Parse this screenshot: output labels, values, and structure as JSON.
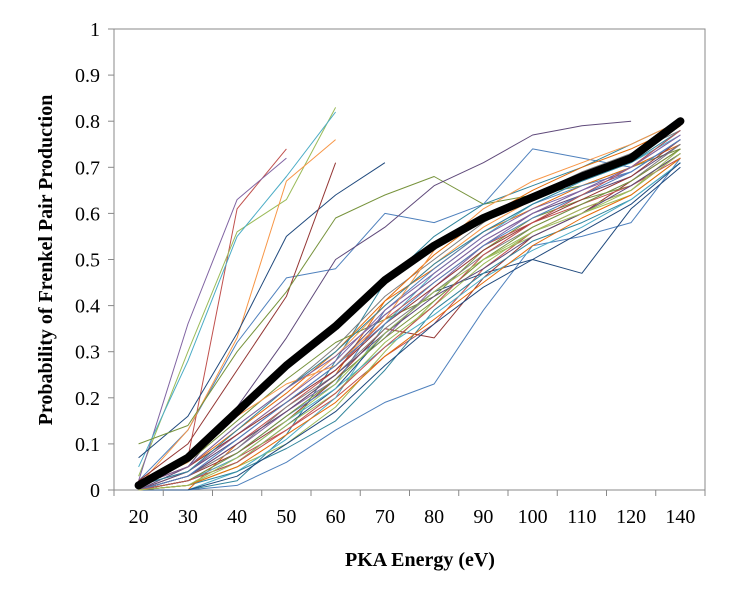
{
  "chart_data": {
    "type": "line",
    "title": "",
    "xlabel": "PKA Energy (eV)",
    "ylabel": "Probability of Frenkel Pair Production",
    "x": [
      20,
      30,
      40,
      50,
      60,
      70,
      80,
      90,
      100,
      110,
      120,
      140
    ],
    "x_tick_labels": [
      "20",
      "30",
      "40",
      "50",
      "60",
      "70",
      "80",
      "90",
      "100",
      "110",
      "120",
      "140"
    ],
    "ylim": [
      0,
      1
    ],
    "y_ticks": [
      0,
      0.1,
      0.2,
      0.3,
      0.4,
      0.5,
      0.6,
      0.7,
      0.8,
      0.9,
      1
    ],
    "y_tick_labels": [
      "0",
      "0.1",
      "0.2",
      "0.3",
      "0.4",
      "0.5",
      "0.6",
      "0.7",
      "0.8",
      "0.9",
      "1"
    ],
    "grid": false,
    "legend": "none",
    "average_line_color": "#000000",
    "average_series": {
      "values": [
        0.01,
        0.07,
        0.17,
        0.27,
        0.355,
        0.455,
        0.53,
        0.59,
        0.635,
        0.68,
        0.72,
        0.8
      ]
    },
    "series": [
      {
        "color": "#4f81bd",
        "values": [
          0.02,
          0.13,
          0.32,
          0.46,
          0.48,
          0.6,
          0.58,
          0.62,
          0.74,
          0.72,
          0.7,
          0.78
        ]
      },
      {
        "color": "#c0504d",
        "values": [
          0.01,
          0.07,
          0.61,
          0.74,
          null,
          null,
          null,
          null,
          null,
          null,
          null,
          null
        ]
      },
      {
        "color": "#9bbb59",
        "values": [
          0.03,
          0.3,
          0.56,
          0.63,
          0.83,
          null,
          null,
          null,
          null,
          null,
          null,
          null
        ]
      },
      {
        "color": "#8064a2",
        "values": [
          0.02,
          0.36,
          0.63,
          0.72,
          null,
          null,
          null,
          null,
          null,
          null,
          null,
          null
        ]
      },
      {
        "color": "#4bacc6",
        "values": [
          0.05,
          0.28,
          0.55,
          0.68,
          0.82,
          null,
          null,
          null,
          null,
          null,
          null,
          null
        ]
      },
      {
        "color": "#f79646",
        "values": [
          0.01,
          0.13,
          0.33,
          0.67,
          0.76,
          null,
          null,
          null,
          null,
          null,
          null,
          null
        ]
      },
      {
        "color": "#1f497d",
        "values": [
          0.07,
          0.16,
          0.34,
          0.55,
          0.64,
          0.71,
          null,
          null,
          null,
          null,
          null,
          null
        ]
      },
      {
        "color": "#943634",
        "values": [
          0.02,
          0.1,
          0.26,
          0.42,
          0.71,
          null,
          null,
          null,
          null,
          null,
          null,
          null
        ]
      },
      {
        "color": "#77933c",
        "values": [
          0.1,
          0.14,
          0.3,
          0.43,
          0.59,
          0.64,
          0.68,
          0.62,
          0.64,
          0.66,
          0.7,
          0.74
        ]
      },
      {
        "color": "#5f497a",
        "values": [
          0.0,
          0.05,
          0.18,
          0.33,
          0.5,
          0.57,
          0.66,
          0.71,
          0.77,
          0.79,
          0.8,
          null
        ]
      },
      {
        "color": "#31859c",
        "values": [
          0.0,
          0.0,
          0.02,
          0.12,
          0.28,
          0.45,
          0.55,
          0.62,
          0.66,
          0.7,
          0.75,
          0.8
        ]
      },
      {
        "color": "#e46c0a",
        "values": [
          0.0,
          0.0,
          0.1,
          0.17,
          0.25,
          0.41,
          0.48,
          0.56,
          0.61,
          0.66,
          0.7,
          0.75
        ]
      },
      {
        "color": "#4f81bd",
        "values": [
          0.0,
          0.0,
          0.01,
          0.06,
          0.13,
          0.19,
          0.23,
          0.39,
          0.53,
          0.55,
          0.58,
          0.72
        ]
      },
      {
        "color": "#c0504d",
        "values": [
          0.0,
          0.02,
          0.07,
          0.13,
          0.2,
          0.29,
          0.36,
          0.48,
          0.56,
          0.61,
          0.65,
          0.73
        ]
      },
      {
        "color": "#9bbb59",
        "values": [
          0.0,
          0.01,
          0.05,
          0.1,
          0.18,
          0.3,
          0.41,
          0.5,
          0.55,
          0.6,
          0.64,
          0.72
        ]
      },
      {
        "color": "#8064a2",
        "values": [
          0.0,
          0.03,
          0.09,
          0.17,
          0.24,
          0.33,
          0.44,
          0.53,
          0.6,
          0.65,
          0.69,
          0.76
        ]
      },
      {
        "color": "#4bacc6",
        "values": [
          0.0,
          0.0,
          0.04,
          0.11,
          0.2,
          0.36,
          0.47,
          0.55,
          0.62,
          0.67,
          0.71,
          0.77
        ]
      },
      {
        "color": "#f79646",
        "values": [
          0.0,
          0.04,
          0.12,
          0.2,
          0.29,
          0.4,
          0.49,
          0.57,
          0.63,
          0.68,
          0.72,
          0.79
        ]
      },
      {
        "color": "#7f7f7f",
        "values": [
          0.01,
          0.05,
          0.14,
          0.22,
          0.31,
          0.42,
          0.5,
          0.58,
          0.64,
          0.69,
          0.73,
          0.78
        ]
      },
      {
        "color": "#1f497d",
        "values": [
          0.0,
          0.02,
          0.06,
          0.14,
          0.22,
          0.34,
          0.43,
          0.47,
          0.5,
          0.47,
          0.61,
          0.7
        ]
      },
      {
        "color": "#943634",
        "values": [
          0.0,
          0.03,
          0.08,
          0.15,
          0.24,
          0.35,
          0.33,
          0.46,
          0.55,
          0.6,
          0.67,
          0.74
        ]
      },
      {
        "color": "#77933c",
        "values": [
          0.01,
          0.06,
          0.15,
          0.24,
          0.32,
          0.37,
          0.42,
          0.52,
          0.59,
          0.63,
          0.66,
          0.73
        ]
      },
      {
        "color": "#5f497a",
        "values": [
          0.0,
          0.04,
          0.11,
          0.19,
          0.27,
          0.38,
          0.46,
          0.54,
          0.6,
          0.64,
          0.68,
          0.75
        ]
      },
      {
        "color": "#31859c",
        "values": [
          0.0,
          0.01,
          0.04,
          0.09,
          0.15,
          0.26,
          0.39,
          0.47,
          0.54,
          0.58,
          0.63,
          0.71
        ]
      },
      {
        "color": "#e46c0a",
        "values": [
          0.01,
          0.05,
          0.13,
          0.21,
          0.3,
          0.41,
          0.51,
          0.59,
          0.65,
          0.7,
          0.74,
          0.79
        ]
      },
      {
        "color": "#4f81bd",
        "values": [
          0.0,
          0.02,
          0.08,
          0.16,
          0.23,
          0.39,
          0.48,
          0.56,
          0.62,
          0.66,
          0.69,
          0.76
        ]
      },
      {
        "color": "#c0504d",
        "values": [
          0.0,
          0.03,
          0.1,
          0.18,
          0.26,
          0.37,
          0.45,
          0.53,
          0.58,
          0.62,
          0.66,
          0.72
        ]
      },
      {
        "color": "#9bbb59",
        "values": [
          0.0,
          0.01,
          0.06,
          0.14,
          0.21,
          0.32,
          0.4,
          0.49,
          0.56,
          0.61,
          0.65,
          0.74
        ]
      },
      {
        "color": "#8064a2",
        "values": [
          0.01,
          0.04,
          0.12,
          0.2,
          0.28,
          0.39,
          0.47,
          0.55,
          0.61,
          0.65,
          0.7,
          0.77
        ]
      },
      {
        "color": "#4bacc6",
        "values": [
          0.0,
          0.02,
          0.07,
          0.15,
          0.22,
          0.31,
          0.38,
          0.46,
          0.52,
          0.57,
          0.63,
          0.71
        ]
      },
      {
        "color": "#f79646",
        "values": [
          0.01,
          0.06,
          0.16,
          0.23,
          0.27,
          0.37,
          0.52,
          0.61,
          0.67,
          0.71,
          0.75,
          0.8
        ]
      },
      {
        "color": "#7f7f7f",
        "values": [
          0.0,
          0.03,
          0.09,
          0.18,
          0.25,
          0.35,
          0.43,
          0.51,
          0.57,
          0.62,
          0.67,
          0.75
        ]
      },
      {
        "color": "#1f497d",
        "values": [
          0.0,
          0.0,
          0.03,
          0.1,
          0.17,
          0.27,
          0.36,
          0.44,
          0.5,
          0.56,
          0.62,
          0.71
        ]
      },
      {
        "color": "#943634",
        "values": [
          0.01,
          0.05,
          0.12,
          0.19,
          0.26,
          0.36,
          0.44,
          0.52,
          0.58,
          0.63,
          0.68,
          0.76
        ]
      },
      {
        "color": "#77933c",
        "values": [
          0.0,
          0.02,
          0.08,
          0.16,
          0.24,
          0.33,
          0.41,
          0.5,
          0.57,
          0.62,
          0.67,
          0.74
        ]
      },
      {
        "color": "#5f497a",
        "values": [
          0.0,
          0.03,
          0.1,
          0.17,
          0.25,
          0.34,
          0.42,
          0.48,
          0.55,
          0.6,
          0.66,
          0.73
        ]
      },
      {
        "color": "#31859c",
        "values": [
          0.01,
          0.04,
          0.13,
          0.22,
          0.3,
          0.4,
          0.49,
          0.56,
          0.62,
          0.67,
          0.71,
          0.78
        ]
      },
      {
        "color": "#e46c0a",
        "values": [
          0.0,
          0.01,
          0.05,
          0.12,
          0.19,
          0.29,
          0.37,
          0.45,
          0.53,
          0.59,
          0.64,
          0.72
        ]
      },
      {
        "color": "#4f81bd",
        "values": [
          0.0,
          0.03,
          0.11,
          0.19,
          0.27,
          0.36,
          0.45,
          0.53,
          0.59,
          0.64,
          0.69,
          0.76
        ]
      },
      {
        "color": "#c0504d",
        "values": [
          0.0,
          0.02,
          0.06,
          0.13,
          0.21,
          0.31,
          0.4,
          0.51,
          0.58,
          0.64,
          0.7,
          0.78
        ]
      },
      {
        "color": "#9bbb59",
        "values": [
          0.0,
          0.01,
          0.07,
          0.15,
          0.23,
          0.34,
          0.43,
          0.5,
          0.56,
          0.6,
          0.65,
          0.73
        ]
      },
      {
        "color": "#8064a2",
        "values": [
          0.01,
          0.05,
          0.14,
          0.22,
          0.29,
          0.38,
          0.46,
          0.54,
          0.6,
          0.65,
          0.7,
          0.77
        ]
      }
    ]
  }
}
